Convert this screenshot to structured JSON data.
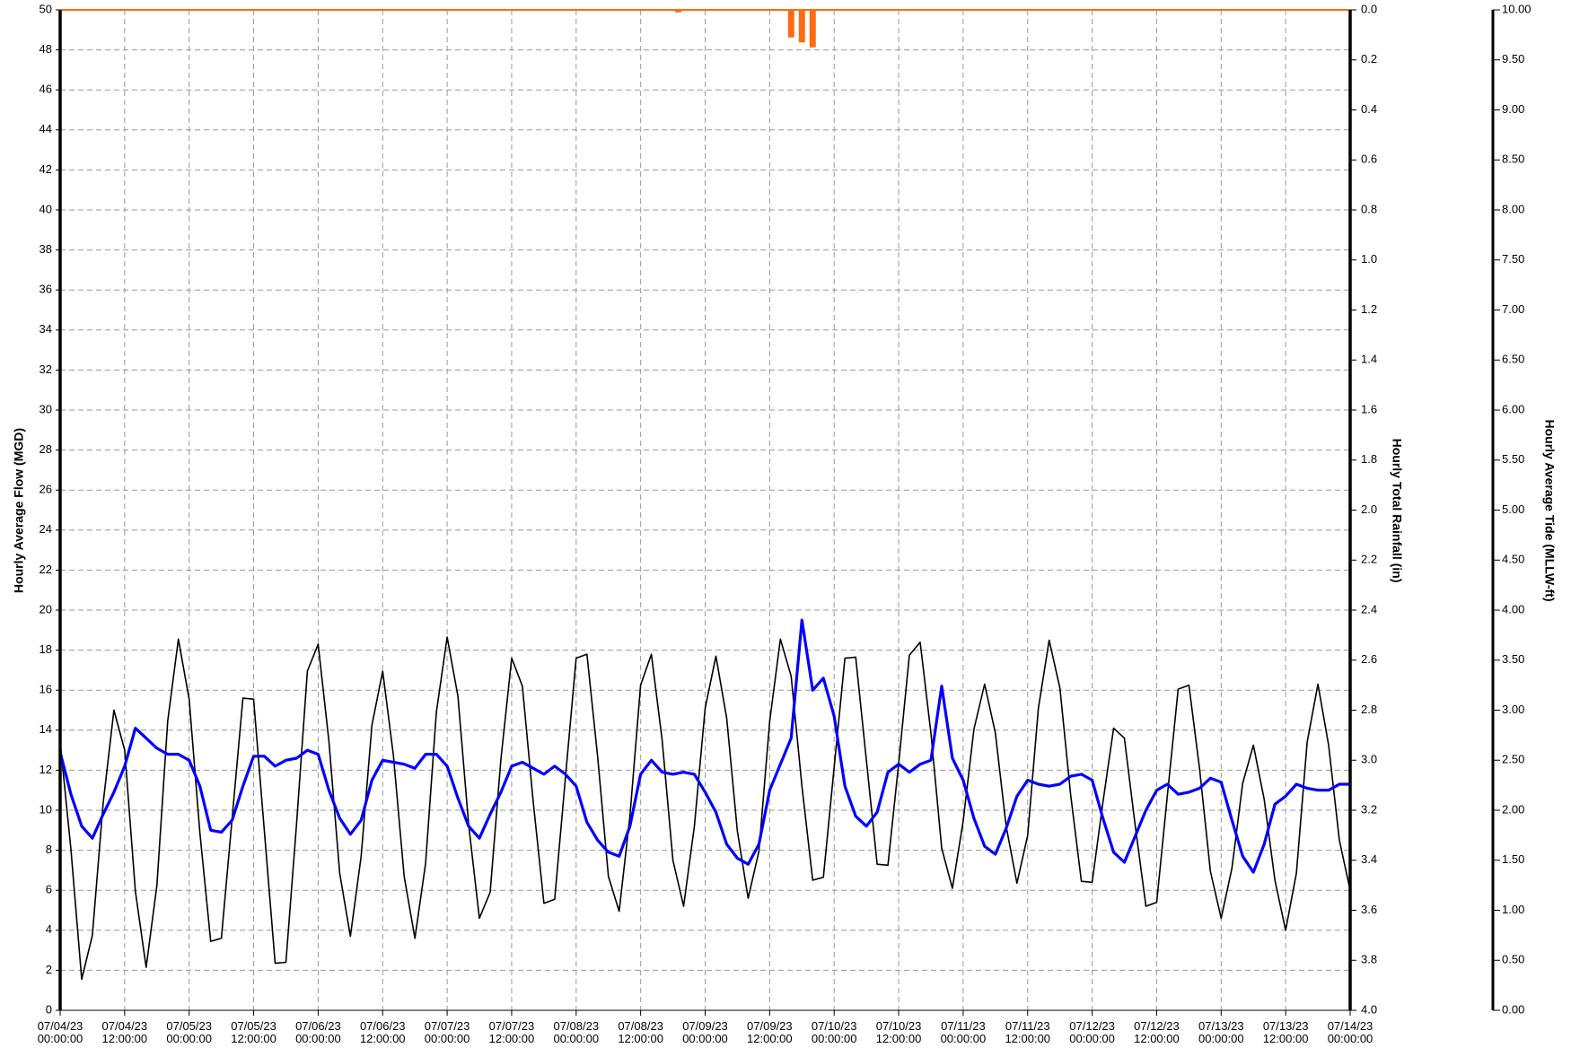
{
  "chart_data": {
    "type": "line",
    "ylabel": "Hourly Average Flow (MGD)",
    "y2label": "Hourly Total Rainfall (in)",
    "y3label": "Hourly Average Tide (MLLW-ft)",
    "xlim": [
      "07/04/23 00:00:00",
      "07/14/23 00:00:00"
    ],
    "xticks": [
      "07/04/23 00:00:00",
      "07/04/23 12:00:00",
      "07/05/23 00:00:00",
      "07/05/23 12:00:00",
      "07/06/23 00:00:00",
      "07/06/23 12:00:00",
      "07/07/23 00:00:00",
      "07/07/23 12:00:00",
      "07/08/23 00:00:00",
      "07/08/23 12:00:00",
      "07/09/23 00:00:00",
      "07/09/23 12:00:00",
      "07/10/23 00:00:00",
      "07/10/23 12:00:00",
      "07/11/23 00:00:00",
      "07/11/23 12:00:00",
      "07/12/23 00:00:00",
      "07/12/23 12:00:00",
      "07/13/23 00:00:00",
      "07/13/23 12:00:00",
      "07/14/23 00:00:00"
    ],
    "ylim": [
      0,
      50
    ],
    "yticks": [
      0,
      2,
      4,
      6,
      8,
      10,
      12,
      14,
      16,
      18,
      20,
      22,
      24,
      26,
      28,
      30,
      32,
      34,
      36,
      38,
      40,
      42,
      44,
      46,
      48,
      50
    ],
    "y2lim": [
      0,
      4
    ],
    "y2_inverted": true,
    "y2ticks": [
      {
        "value": 0,
        "label": "0.0"
      },
      0.2,
      0.4,
      0.6,
      0.8,
      {
        "value": 1,
        "label": "1.0"
      },
      1.2,
      1.4,
      1.6,
      1.8,
      {
        "value": 2,
        "label": "2.0"
      },
      2.2,
      2.4,
      2.6,
      2.8,
      {
        "value": 3,
        "label": "3.0"
      },
      3.2,
      3.4,
      3.6,
      3.8,
      {
        "value": 4,
        "label": "4.0"
      }
    ],
    "y3lim": [
      0,
      10
    ],
    "y3ticks": [
      {
        "value": 0,
        "label": "0.00"
      },
      {
        "value": 0.5,
        "label": "0.50"
      },
      {
        "value": 1,
        "label": "1.00"
      },
      {
        "value": 1.5,
        "label": "1.50"
      },
      {
        "value": 2,
        "label": "2.00"
      },
      {
        "value": 2.5,
        "label": "2.50"
      },
      {
        "value": 3,
        "label": "3.00"
      },
      {
        "value": 3.5,
        "label": "3.50"
      },
      {
        "value": 4,
        "label": "4.00"
      },
      {
        "value": 4.5,
        "label": "4.50"
      },
      {
        "value": 5,
        "label": "5.00"
      },
      {
        "value": 5.5,
        "label": "5.50"
      },
      {
        "value": 6,
        "label": "6.00"
      },
      {
        "value": 6.5,
        "label": "6.50"
      },
      {
        "value": 7,
        "label": "7.00"
      },
      {
        "value": 7.5,
        "label": "7.50"
      },
      {
        "value": 8,
        "label": "8.00"
      },
      {
        "value": 8.5,
        "label": "8.50"
      },
      {
        "value": 9,
        "label": "9.00"
      },
      {
        "value": 9.5,
        "label": "9.50"
      },
      {
        "value": 10,
        "label": "10.00"
      }
    ],
    "grid": true,
    "x": [
      "07/04/23 00:00:00",
      "07/04/23 02:00:00",
      "07/04/23 04:00:00",
      "07/04/23 06:00:00",
      "07/04/23 08:00:00",
      "07/04/23 10:00:00",
      "07/04/23 12:00:00",
      "07/04/23 14:00:00",
      "07/04/23 16:00:00",
      "07/04/23 18:00:00",
      "07/04/23 20:00:00",
      "07/04/23 22:00:00",
      "07/05/23 00:00:00",
      "07/05/23 02:00:00",
      "07/05/23 04:00:00",
      "07/05/23 06:00:00",
      "07/05/23 08:00:00",
      "07/05/23 10:00:00",
      "07/05/23 12:00:00",
      "07/05/23 14:00:00",
      "07/05/23 16:00:00",
      "07/05/23 18:00:00",
      "07/05/23 20:00:00",
      "07/05/23 22:00:00",
      "07/06/23 00:00:00",
      "07/06/23 02:00:00",
      "07/06/23 04:00:00",
      "07/06/23 06:00:00",
      "07/06/23 08:00:00",
      "07/06/23 10:00:00",
      "07/06/23 12:00:00",
      "07/06/23 14:00:00",
      "07/06/23 16:00:00",
      "07/06/23 18:00:00",
      "07/06/23 20:00:00",
      "07/06/23 22:00:00",
      "07/07/23 00:00:00",
      "07/07/23 02:00:00",
      "07/07/23 04:00:00",
      "07/07/23 06:00:00",
      "07/07/23 08:00:00",
      "07/07/23 10:00:00",
      "07/07/23 12:00:00",
      "07/07/23 14:00:00",
      "07/07/23 16:00:00",
      "07/07/23 18:00:00",
      "07/07/23 20:00:00",
      "07/07/23 22:00:00",
      "07/08/23 00:00:00",
      "07/08/23 02:00:00",
      "07/08/23 04:00:00",
      "07/08/23 06:00:00",
      "07/08/23 08:00:00",
      "07/08/23 10:00:00",
      "07/08/23 12:00:00",
      "07/08/23 14:00:00",
      "07/08/23 16:00:00",
      "07/08/23 18:00:00",
      "07/08/23 20:00:00",
      "07/08/23 22:00:00",
      "07/09/23 00:00:00",
      "07/09/23 02:00:00",
      "07/09/23 04:00:00",
      "07/09/23 06:00:00",
      "07/09/23 08:00:00",
      "07/09/23 10:00:00",
      "07/09/23 12:00:00",
      "07/09/23 14:00:00",
      "07/09/23 16:00:00",
      "07/09/23 18:00:00",
      "07/09/23 20:00:00",
      "07/09/23 22:00:00",
      "07/10/23 00:00:00",
      "07/10/23 02:00:00",
      "07/10/23 04:00:00",
      "07/10/23 06:00:00",
      "07/10/23 08:00:00",
      "07/10/23 10:00:00",
      "07/10/23 12:00:00",
      "07/10/23 14:00:00",
      "07/10/23 16:00:00",
      "07/10/23 18:00:00",
      "07/10/23 20:00:00",
      "07/10/23 22:00:00",
      "07/11/23 00:00:00",
      "07/11/23 02:00:00",
      "07/11/23 04:00:00",
      "07/11/23 06:00:00",
      "07/11/23 08:00:00",
      "07/11/23 10:00:00",
      "07/11/23 12:00:00",
      "07/11/23 14:00:00",
      "07/11/23 16:00:00",
      "07/11/23 18:00:00",
      "07/11/23 20:00:00",
      "07/11/23 22:00:00",
      "07/12/23 00:00:00",
      "07/12/23 02:00:00",
      "07/12/23 04:00:00",
      "07/12/23 06:00:00",
      "07/12/23 08:00:00",
      "07/12/23 10:00:00",
      "07/12/23 12:00:00",
      "07/12/23 14:00:00",
      "07/12/23 16:00:00",
      "07/12/23 18:00:00",
      "07/12/23 20:00:00",
      "07/12/23 22:00:00",
      "07/13/23 00:00:00",
      "07/13/23 02:00:00",
      "07/13/23 04:00:00",
      "07/13/23 06:00:00",
      "07/13/23 08:00:00",
      "07/13/23 10:00:00",
      "07/13/23 12:00:00",
      "07/13/23 14:00:00",
      "07/13/23 16:00:00",
      "07/13/23 18:00:00",
      "07/13/23 20:00:00",
      "07/13/23 22:00:00",
      "07/14/23 00:00:00"
    ],
    "series": [
      {
        "color": "#000000",
        "axis": "y3",
        "width": 1.6,
        "values": [
          2.68,
          1.61,
          0.31,
          0.75,
          2.07,
          3.0,
          2.6,
          1.19,
          0.43,
          1.25,
          2.89,
          3.71,
          3.11,
          1.77,
          0.69,
          0.72,
          1.92,
          3.12,
          3.11,
          1.79,
          0.47,
          0.48,
          1.87,
          3.39,
          3.66,
          2.69,
          1.37,
          0.74,
          1.54,
          2.85,
          3.39,
          2.55,
          1.34,
          0.72,
          1.47,
          2.98,
          3.73,
          3.14,
          1.86,
          0.92,
          1.18,
          2.51,
          3.52,
          3.24,
          2.09,
          1.07,
          1.11,
          2.32,
          3.52,
          3.56,
          2.53,
          1.34,
          0.99,
          1.94,
          3.25,
          3.56,
          2.7,
          1.5,
          1.04,
          1.84,
          3.02,
          3.54,
          2.92,
          1.79,
          1.12,
          1.59,
          2.89,
          3.71,
          3.34,
          2.24,
          1.3,
          1.33,
          2.43,
          3.52,
          3.53,
          2.5,
          1.46,
          1.45,
          2.47,
          3.55,
          3.68,
          2.77,
          1.62,
          1.22,
          1.89,
          2.81,
          3.26,
          2.77,
          1.84,
          1.27,
          1.75,
          3.02,
          3.7,
          3.22,
          2.15,
          1.29,
          1.28,
          2.08,
          2.82,
          2.72,
          1.85,
          1.04,
          1.08,
          2.15,
          3.21,
          3.25,
          2.41,
          1.39,
          0.92,
          1.42,
          2.27,
          2.65,
          2.11,
          1.3,
          0.8,
          1.37,
          2.68,
          3.26,
          2.65,
          1.7,
          1.2
        ]
      },
      {
        "color": "#0000ff",
        "axis": "y",
        "width": 3.2,
        "values": [
          12.9,
          10.8,
          9.2,
          8.6,
          9.8,
          10.9,
          12.2,
          14.1,
          13.6,
          13.1,
          12.8,
          12.8,
          12.5,
          11.2,
          9.0,
          8.9,
          9.5,
          11.2,
          12.7,
          12.7,
          12.2,
          12.5,
          12.6,
          13.0,
          12.8,
          11.0,
          9.6,
          8.8,
          9.5,
          11.5,
          12.5,
          12.4,
          12.3,
          12.1,
          12.8,
          12.8,
          12.2,
          10.6,
          9.2,
          8.6,
          9.8,
          10.9,
          12.2,
          12.4,
          12.1,
          11.8,
          12.2,
          11.8,
          11.2,
          9.4,
          8.5,
          7.9,
          7.7,
          9.2,
          11.8,
          12.5,
          11.9,
          11.8,
          11.9,
          11.8,
          10.9,
          9.9,
          8.3,
          7.6,
          7.3,
          8.3,
          11.0,
          12.3,
          13.6,
          19.5,
          16.0,
          16.6,
          14.7,
          11.2,
          9.7,
          9.2,
          9.9,
          11.9,
          12.3,
          11.9,
          12.3,
          12.5,
          16.2,
          12.6,
          11.5,
          9.6,
          8.2,
          7.8,
          9.1,
          10.7,
          11.5,
          11.3,
          11.2,
          11.3,
          11.7,
          11.8,
          11.5,
          9.6,
          7.9,
          7.4,
          8.7,
          10.0,
          11.0,
          11.3,
          10.8,
          10.9,
          11.1,
          11.6,
          11.4,
          9.5,
          7.7,
          6.9,
          8.3,
          10.3,
          10.7,
          11.3,
          11.1,
          11.0,
          11.0,
          11.3,
          11.3
        ]
      },
      {
        "color": "#ff6a13",
        "axis": "y2",
        "kind": "bar",
        "x": [
          "07/08/23 19:00:00",
          "07/09/23 16:00:00",
          "07/09/23 18:00:00",
          "07/09/23 20:00:00"
        ],
        "values": [
          0.01,
          0.11,
          0.13,
          0.15
        ]
      }
    ]
  }
}
